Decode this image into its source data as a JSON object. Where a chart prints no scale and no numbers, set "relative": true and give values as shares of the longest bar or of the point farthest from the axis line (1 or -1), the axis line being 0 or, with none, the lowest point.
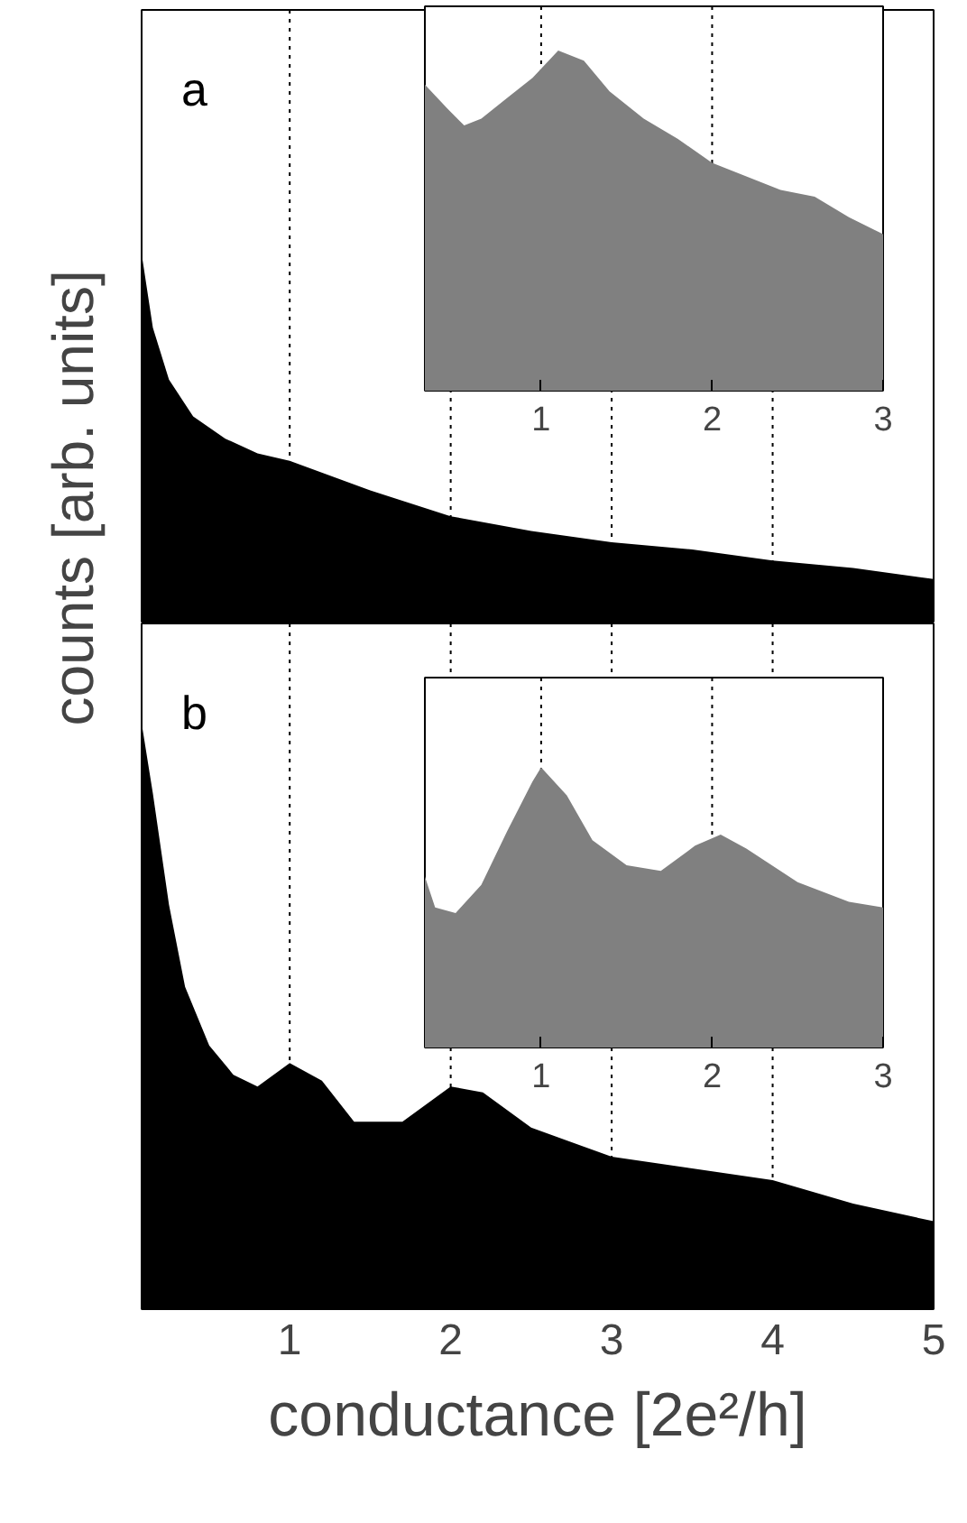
{
  "chart_data": [
    {
      "type": "area",
      "relative": true,
      "color": "#000000",
      "ylabel": "counts  [arb. units]",
      "annotations": [
        "a"
      ],
      "xlim": [
        0.08,
        5
      ],
      "xticks": [
        1,
        2,
        3,
        4,
        5
      ],
      "tick_labels": false,
      "x": [
        0.08,
        0.15,
        0.25,
        0.4,
        0.6,
        0.8,
        1.0,
        1.5,
        2.0,
        2.5,
        3.0,
        3.5,
        4.0,
        4.5,
        5.0
      ],
      "values": [
        1.0,
        0.8,
        0.66,
        0.56,
        0.5,
        0.46,
        0.44,
        0.36,
        0.29,
        0.25,
        0.22,
        0.2,
        0.17,
        0.15,
        0.12
      ],
      "ref_lines": [
        {
          "axis": "x",
          "value": 1,
          "line_style": "dotted",
          "color": "#000000"
        },
        {
          "axis": "x",
          "value": 2,
          "line_style": "dotted",
          "color": "#000000"
        },
        {
          "axis": "x",
          "value": 3,
          "line_style": "dotted",
          "color": "#000000"
        },
        {
          "axis": "x",
          "value": 4,
          "line_style": "dotted",
          "color": "#000000"
        }
      ]
    },
    {
      "type": "area",
      "relative": true,
      "color": "#808080",
      "xlim": [
        0.32,
        3
      ],
      "xticks": [
        1,
        2,
        3
      ],
      "tick_labels": "x",
      "x": [
        0.32,
        0.45,
        0.55,
        0.65,
        0.8,
        0.95,
        1.1,
        1.25,
        1.4,
        1.6,
        1.8,
        2.0,
        2.2,
        2.4,
        2.6,
        2.8,
        3.0
      ],
      "values": [
        0.9,
        0.83,
        0.78,
        0.8,
        0.86,
        0.92,
        1.0,
        0.97,
        0.88,
        0.8,
        0.74,
        0.67,
        0.63,
        0.59,
        0.57,
        0.51,
        0.46
      ],
      "ref_lines": [
        {
          "axis": "x",
          "value": 1,
          "line_style": "dotted",
          "color": "#000000"
        },
        {
          "axis": "x",
          "value": 2,
          "line_style": "dotted",
          "color": "#000000"
        }
      ]
    },
    {
      "type": "area",
      "relative": true,
      "color": "#000000",
      "xlabel": "conductance [2e²/h]",
      "annotations": [
        "b"
      ],
      "xlim": [
        0.08,
        5
      ],
      "xticks": [
        1,
        2,
        3,
        4,
        5
      ],
      "tick_labels": "x",
      "x": [
        0.08,
        0.15,
        0.25,
        0.35,
        0.5,
        0.65,
        0.8,
        1.0,
        1.2,
        1.4,
        1.7,
        2.0,
        2.2,
        2.5,
        3.0,
        3.5,
        4.0,
        4.5,
        5.0
      ],
      "values": [
        1.0,
        0.88,
        0.69,
        0.55,
        0.45,
        0.4,
        0.38,
        0.42,
        0.39,
        0.32,
        0.32,
        0.38,
        0.37,
        0.31,
        0.26,
        0.24,
        0.22,
        0.18,
        0.15
      ],
      "ref_lines": [
        {
          "axis": "x",
          "value": 1,
          "line_style": "dotted",
          "color": "#000000"
        },
        {
          "axis": "x",
          "value": 2,
          "line_style": "dotted",
          "color": "#000000"
        },
        {
          "axis": "x",
          "value": 3,
          "line_style": "dotted",
          "color": "#000000"
        },
        {
          "axis": "x",
          "value": 4,
          "line_style": "dotted",
          "color": "#000000"
        }
      ]
    },
    {
      "type": "area",
      "relative": true,
      "color": "#808080",
      "xlim": [
        0.32,
        3
      ],
      "xticks": [
        1,
        2,
        3
      ],
      "tick_labels": "x",
      "x": [
        0.32,
        0.38,
        0.5,
        0.65,
        0.8,
        0.95,
        1.0,
        1.15,
        1.3,
        1.5,
        1.7,
        1.9,
        2.05,
        2.2,
        2.5,
        2.8,
        3.0
      ],
      "values": [
        0.61,
        0.5,
        0.48,
        0.58,
        0.77,
        0.95,
        1.0,
        0.9,
        0.74,
        0.65,
        0.63,
        0.72,
        0.76,
        0.71,
        0.59,
        0.52,
        0.5
      ],
      "ref_lines": [
        {
          "axis": "x",
          "value": 1,
          "line_style": "dotted",
          "color": "#000000"
        },
        {
          "axis": "x",
          "value": 2,
          "line_style": "dotted",
          "color": "#000000"
        }
      ]
    }
  ]
}
